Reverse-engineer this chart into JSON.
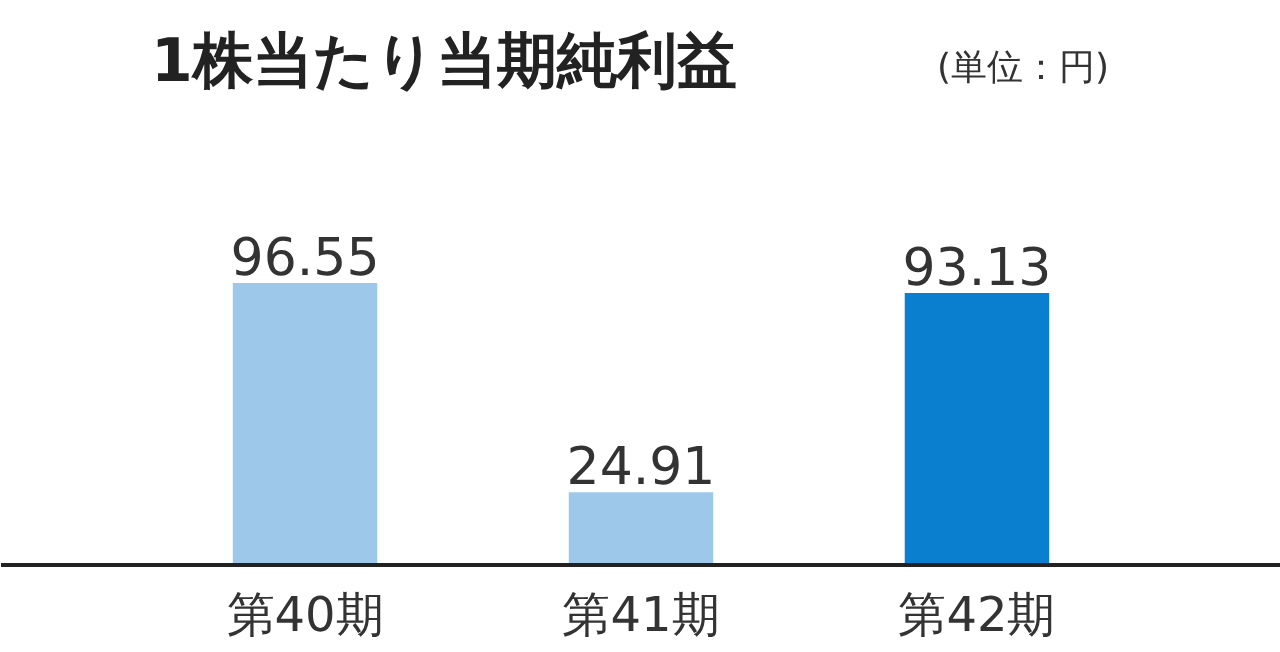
{
  "chart_data": {
    "type": "bar",
    "title": "1株当たり当期純利益",
    "subtitle": "(単位：円)",
    "categories": [
      "第40期",
      "第41期",
      "第42期"
    ],
    "values": [
      96.55,
      24.91,
      93.13
    ],
    "colors": [
      "#9dc8ea",
      "#9dc8ea",
      "#0a7fd0"
    ],
    "data_labels": true
  }
}
